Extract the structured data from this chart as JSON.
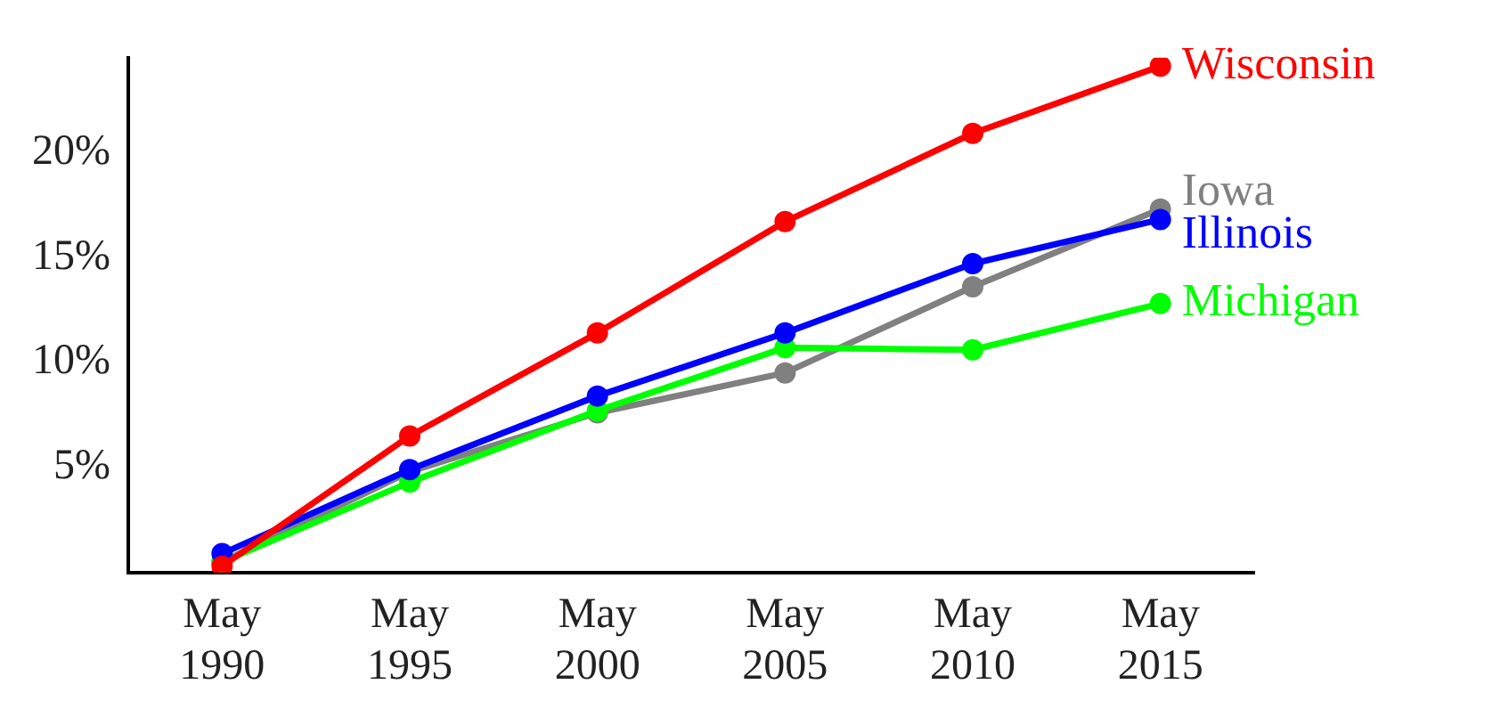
{
  "chart_data": {
    "type": "line",
    "categories": [
      "May 1990",
      "May 1995",
      "May 2000",
      "May 2005",
      "May 2010",
      "May 2015"
    ],
    "series": [
      {
        "name": "Wisconsin",
        "color": "#ff0000",
        "values": [
          0.3,
          6.5,
          11.4,
          16.7,
          20.9,
          24.1
        ]
      },
      {
        "name": "Illinois",
        "color": "#0000ff",
        "values": [
          0.9,
          4.9,
          8.4,
          11.4,
          14.7,
          16.8
        ]
      },
      {
        "name": "Michigan",
        "color": "#00ff00",
        "values": [
          0.5,
          4.3,
          7.7,
          10.7,
          10.6,
          12.8
        ]
      },
      {
        "name": "Iowa",
        "color": "#808080",
        "values": [
          0.5,
          4.8,
          7.6,
          9.5,
          13.6,
          17.3
        ]
      }
    ],
    "ylim": [
      0,
      24.5
    ],
    "yticks": [
      {
        "value": 5,
        "label": "5%"
      },
      {
        "value": 10,
        "label": "10%"
      },
      {
        "value": 15,
        "label": "15%"
      },
      {
        "value": 20,
        "label": "20%"
      }
    ],
    "grid": false,
    "legend": false,
    "marker": "circle",
    "line_style": "solid"
  }
}
